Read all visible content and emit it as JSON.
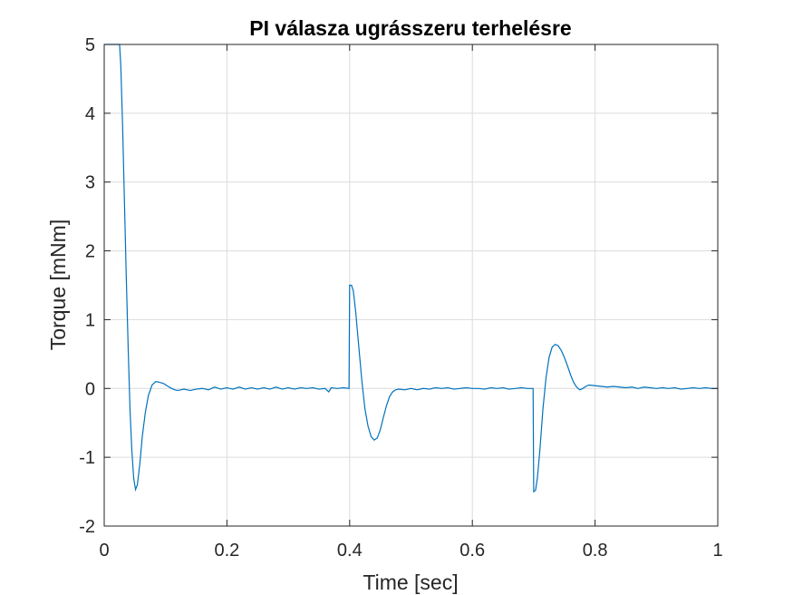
{
  "chart_data": {
    "type": "line",
    "title": "PI válasza ugrásszeru terhelésre",
    "xlabel": "Time [sec]",
    "ylabel": "Torque [mNm]",
    "xlim": [
      0,
      1
    ],
    "ylim": [
      -2,
      5
    ],
    "xticks": [
      0,
      0.2,
      0.4,
      0.6,
      0.8,
      1
    ],
    "xtick_labels": [
      "0",
      "0.2",
      "0.4",
      "0.6",
      "0.8",
      "1"
    ],
    "yticks": [
      -2,
      -1,
      0,
      1,
      2,
      3,
      4,
      5
    ],
    "ytick_labels": [
      "-2",
      "-1",
      "0",
      "1",
      "2",
      "3",
      "4",
      "5"
    ],
    "grid": true,
    "line_color": "#0072BD",
    "series": [
      {
        "points": [
          [
            0.0,
            5.0
          ],
          [
            0.025,
            5.0
          ],
          [
            0.027,
            4.7
          ],
          [
            0.03,
            3.8
          ],
          [
            0.033,
            2.7
          ],
          [
            0.036,
            1.6
          ],
          [
            0.039,
            0.6
          ],
          [
            0.042,
            -0.3
          ],
          [
            0.045,
            -0.9
          ],
          [
            0.048,
            -1.3
          ],
          [
            0.051,
            -1.47
          ],
          [
            0.054,
            -1.4
          ],
          [
            0.058,
            -1.1
          ],
          [
            0.062,
            -0.7
          ],
          [
            0.067,
            -0.35
          ],
          [
            0.072,
            -0.1
          ],
          [
            0.078,
            0.05
          ],
          [
            0.084,
            0.1
          ],
          [
            0.09,
            0.09
          ],
          [
            0.097,
            0.07
          ],
          [
            0.104,
            0.03
          ],
          [
            0.11,
            0.0
          ],
          [
            0.115,
            -0.02
          ],
          [
            0.12,
            -0.03
          ],
          [
            0.13,
            -0.01
          ],
          [
            0.14,
            -0.03
          ],
          [
            0.15,
            -0.01
          ],
          [
            0.16,
            0.0
          ],
          [
            0.17,
            -0.02
          ],
          [
            0.18,
            0.02
          ],
          [
            0.19,
            -0.01
          ],
          [
            0.2,
            0.01
          ],
          [
            0.21,
            -0.01
          ],
          [
            0.22,
            0.02
          ],
          [
            0.23,
            -0.01
          ],
          [
            0.24,
            0.01
          ],
          [
            0.25,
            -0.01
          ],
          [
            0.26,
            0.01
          ],
          [
            0.27,
            -0.01
          ],
          [
            0.28,
            0.02
          ],
          [
            0.29,
            -0.01
          ],
          [
            0.3,
            0.01
          ],
          [
            0.31,
            -0.01
          ],
          [
            0.32,
            0.01
          ],
          [
            0.33,
            0.0
          ],
          [
            0.34,
            0.01
          ],
          [
            0.35,
            -0.01
          ],
          [
            0.36,
            0.0
          ],
          [
            0.366,
            -0.05
          ],
          [
            0.37,
            0.01
          ],
          [
            0.38,
            0.0
          ],
          [
            0.39,
            0.01
          ],
          [
            0.399,
            0.0
          ],
          [
            0.4,
            1.5
          ],
          [
            0.403,
            1.5
          ],
          [
            0.406,
            1.42
          ],
          [
            0.41,
            1.1
          ],
          [
            0.415,
            0.6
          ],
          [
            0.42,
            0.1
          ],
          [
            0.425,
            -0.3
          ],
          [
            0.43,
            -0.55
          ],
          [
            0.435,
            -0.7
          ],
          [
            0.44,
            -0.75
          ],
          [
            0.445,
            -0.72
          ],
          [
            0.45,
            -0.6
          ],
          [
            0.455,
            -0.42
          ],
          [
            0.46,
            -0.25
          ],
          [
            0.465,
            -0.12
          ],
          [
            0.47,
            -0.05
          ],
          [
            0.475,
            -0.02
          ],
          [
            0.48,
            -0.01
          ],
          [
            0.49,
            -0.02
          ],
          [
            0.5,
            0.0
          ],
          [
            0.51,
            -0.02
          ],
          [
            0.52,
            0.0
          ],
          [
            0.53,
            -0.01
          ],
          [
            0.54,
            0.01
          ],
          [
            0.55,
            0.0
          ],
          [
            0.56,
            0.01
          ],
          [
            0.57,
            -0.01
          ],
          [
            0.58,
            0.0
          ],
          [
            0.59,
            0.01
          ],
          [
            0.6,
            0.0
          ],
          [
            0.61,
            0.0
          ],
          [
            0.62,
            -0.01
          ],
          [
            0.63,
            0.01
          ],
          [
            0.64,
            0.0
          ],
          [
            0.65,
            0.01
          ],
          [
            0.66,
            -0.01
          ],
          [
            0.67,
            0.0
          ],
          [
            0.68,
            0.01
          ],
          [
            0.69,
            0.0
          ],
          [
            0.699,
            0.0
          ],
          [
            0.7,
            -1.5
          ],
          [
            0.703,
            -1.48
          ],
          [
            0.706,
            -1.3
          ],
          [
            0.71,
            -0.9
          ],
          [
            0.715,
            -0.3
          ],
          [
            0.72,
            0.15
          ],
          [
            0.725,
            0.45
          ],
          [
            0.73,
            0.6
          ],
          [
            0.735,
            0.64
          ],
          [
            0.74,
            0.62
          ],
          [
            0.745,
            0.55
          ],
          [
            0.75,
            0.45
          ],
          [
            0.755,
            0.33
          ],
          [
            0.76,
            0.2
          ],
          [
            0.765,
            0.09
          ],
          [
            0.77,
            0.02
          ],
          [
            0.775,
            -0.02
          ],
          [
            0.78,
            0.0
          ],
          [
            0.785,
            0.03
          ],
          [
            0.79,
            0.05
          ],
          [
            0.8,
            0.04
          ],
          [
            0.81,
            0.03
          ],
          [
            0.82,
            0.02
          ],
          [
            0.83,
            0.03
          ],
          [
            0.84,
            0.02
          ],
          [
            0.85,
            0.01
          ],
          [
            0.86,
            0.02
          ],
          [
            0.87,
            0.0
          ],
          [
            0.88,
            0.02
          ],
          [
            0.89,
            0.01
          ],
          [
            0.9,
            0.0
          ],
          [
            0.91,
            0.01
          ],
          [
            0.92,
            0.0
          ],
          [
            0.93,
            0.01
          ],
          [
            0.94,
            -0.01
          ],
          [
            0.95,
            0.0
          ],
          [
            0.96,
            0.01
          ],
          [
            0.97,
            0.0
          ],
          [
            0.98,
            0.01
          ],
          [
            0.99,
            0.0
          ],
          [
            1.0,
            0.0
          ]
        ]
      }
    ]
  }
}
